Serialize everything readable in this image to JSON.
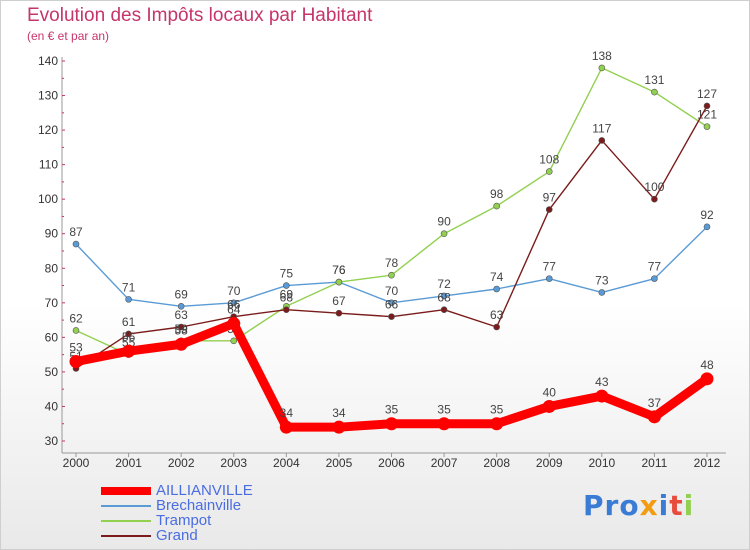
{
  "title": "Evolution des Impôts locaux par Habitant",
  "subtitle": "(en € et par an)",
  "logo_text": "Proxiti",
  "chart_data": {
    "type": "line",
    "title": "Evolution des Impôts locaux par Habitant",
    "subtitle": "(en € et par an)",
    "xlabel": "",
    "ylabel": "",
    "ylim": [
      30,
      140
    ],
    "yticks": [
      "30",
      "40",
      "50",
      "60",
      "70",
      "80",
      "90",
      "100",
      "110",
      "120",
      "130",
      "140"
    ],
    "categories": [
      "2000",
      "2001",
      "2002",
      "2003",
      "2004",
      "2005",
      "2006",
      "2007",
      "2008",
      "2009",
      "2010",
      "2011",
      "2012"
    ],
    "series": [
      {
        "name": "Brechainville",
        "color": "#5b9bd5",
        "values": [
          87,
          71,
          69,
          70,
          75,
          76,
          70,
          72,
          74,
          77,
          73,
          77,
          92
        ]
      },
      {
        "name": "Trampot",
        "color": "#92d050",
        "values": [
          62,
          55,
          59,
          59,
          69,
          76,
          78,
          90,
          98,
          108,
          138,
          131,
          121
        ]
      },
      {
        "name": "Grand",
        "color": "#7b1b1b",
        "values": [
          51,
          61,
          63,
          66,
          68,
          67,
          66,
          68,
          63,
          97,
          117,
          100,
          127
        ]
      },
      {
        "name": "AILLIANVILLE",
        "color": "#ff0000",
        "values": [
          53,
          56,
          58,
          64,
          34,
          34,
          35,
          35,
          35,
          40,
          43,
          37,
          48
        ]
      }
    ],
    "legend": [
      "AILLIANVILLE",
      "Brechainville",
      "Trampot",
      "Grand"
    ],
    "legend_position": "bottom-left",
    "grid": false
  }
}
